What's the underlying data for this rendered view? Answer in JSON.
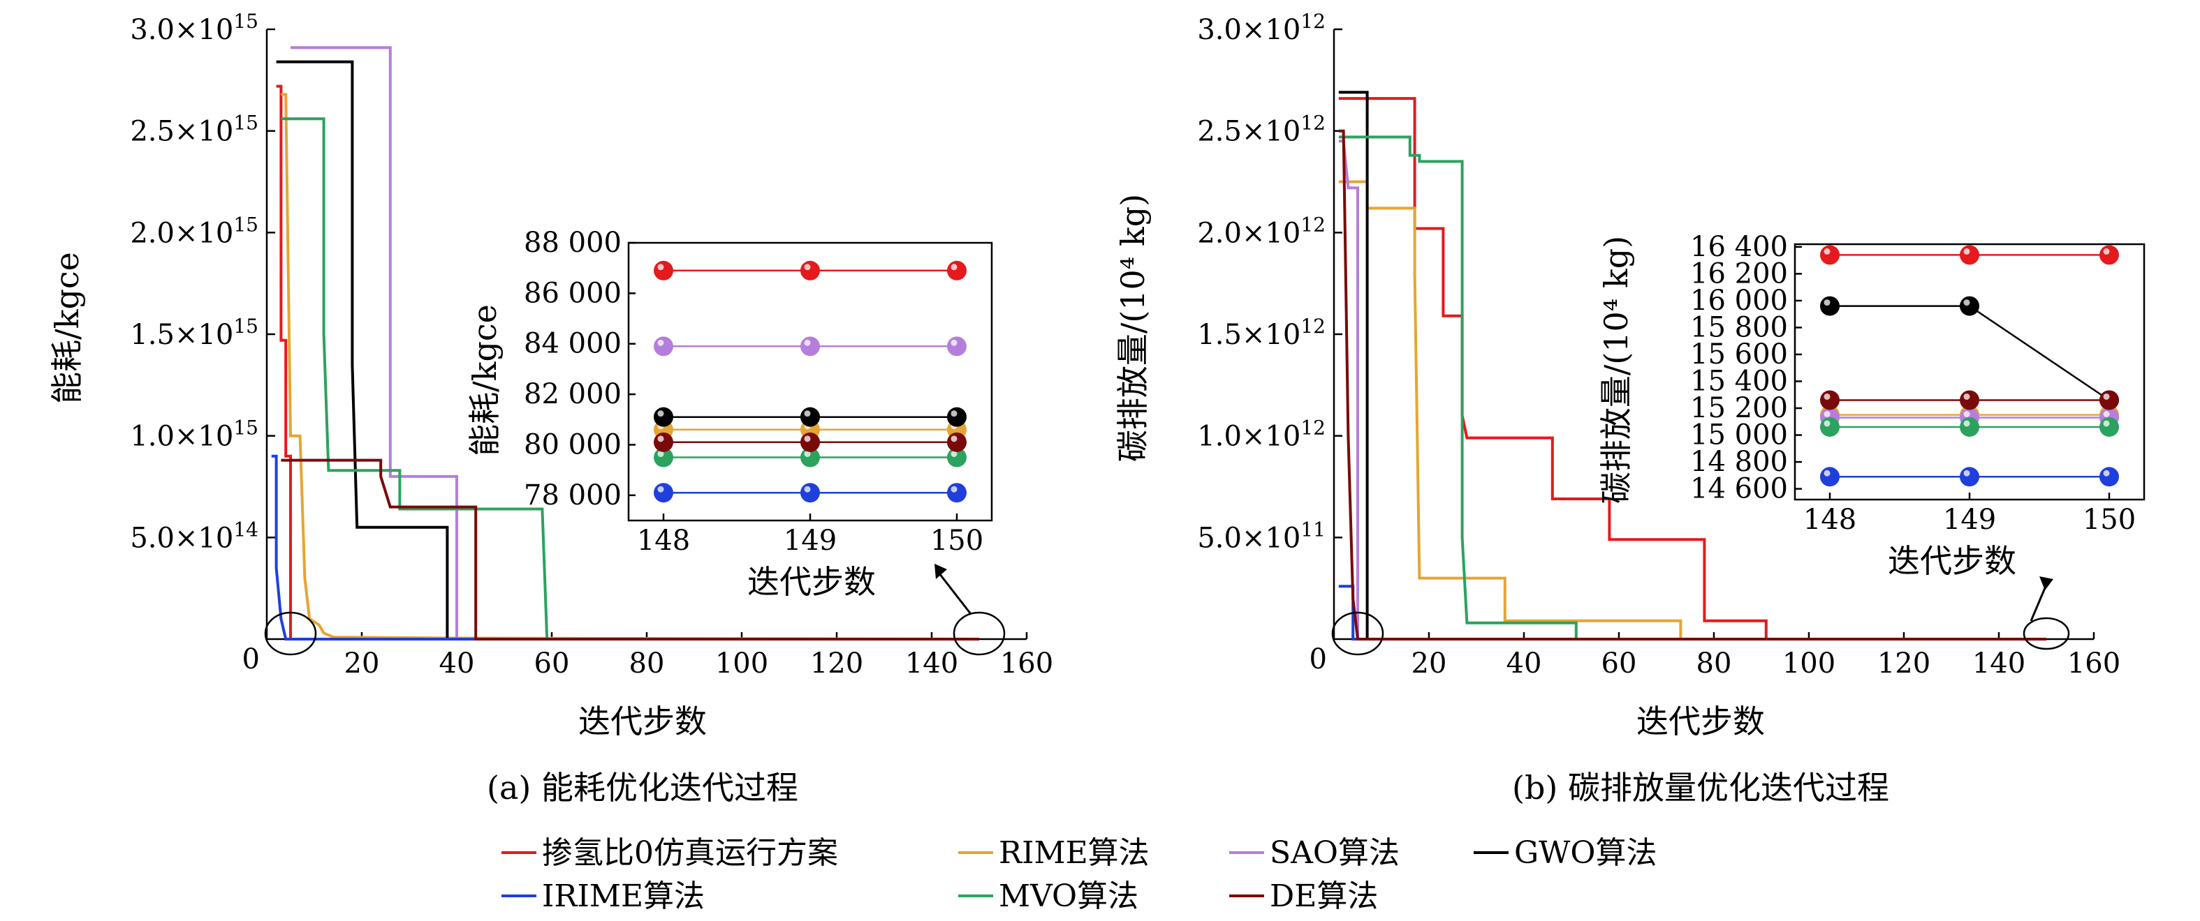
{
  "legend": [
    {
      "label": "掺氢比0仿真运行方案",
      "color": "#e41a1c"
    },
    {
      "label": "RIME算法",
      "color": "#e6a532"
    },
    {
      "label": "SAO算法",
      "color": "#b57edc"
    },
    {
      "label": "GWO算法",
      "color": "#000000"
    },
    {
      "label": "IRIME算法",
      "color": "#1f3fdc"
    },
    {
      "label": "MVO算法",
      "color": "#2ca25f"
    },
    {
      "label": "DE算法",
      "color": "#7a0a0a"
    }
  ],
  "chart_data": [
    {
      "type": "line",
      "caption": "(a) 能耗优化迭代过程",
      "xlabel": "迭代步数",
      "ylabel": "能耗/kgce",
      "xlim": [
        0,
        160
      ],
      "ylim": [
        0,
        3000000000000000.0
      ],
      "xticks": [
        "0",
        "20",
        "40",
        "60",
        "80",
        "100",
        "120",
        "140",
        "160"
      ],
      "yticks": [
        "0",
        "5.0×10¹⁴",
        "1.0×10¹⁵",
        "1.5×10¹⁵",
        "2.0×10¹⁵",
        "2.5×10¹⁵",
        "3.0×10¹⁵"
      ],
      "series": [
        {
          "name": "掺氢比0仿真运行方案",
          "color": "#e41a1c",
          "points": [
            [
              2,
              2720000000000000.0
            ],
            [
              3,
              2720000000000000.0
            ],
            [
              3,
              1470000000000000.0
            ],
            [
              4,
              1470000000000000.0
            ],
            [
              4,
              900000000000000.0
            ],
            [
              5,
              900000000000000.0
            ],
            [
              5,
              0
            ],
            [
              150,
              0
            ]
          ]
        },
        {
          "name": "RIME算法",
          "color": "#e6a532",
          "points": [
            [
              3,
              2680000000000000.0
            ],
            [
              4,
              2680000000000000.0
            ],
            [
              5,
              1000000000000000.0
            ],
            [
              7,
              1000000000000000.0
            ],
            [
              8,
              300000000000000.0
            ],
            [
              9,
              100000000000000.0
            ],
            [
              11,
              70000000000000.0
            ],
            [
              12,
              30000000000000.0
            ],
            [
              14,
              10000000000000.0
            ],
            [
              40,
              5000000000000.0
            ],
            [
              150,
              0
            ]
          ]
        },
        {
          "name": "SAO算法",
          "color": "#b57edc",
          "points": [
            [
              5,
              2910000000000000.0
            ],
            [
              26,
              2910000000000000.0
            ],
            [
              26,
              800000000000000.0
            ],
            [
              40,
              800000000000000.0
            ],
            [
              40,
              0
            ],
            [
              150,
              0
            ]
          ]
        },
        {
          "name": "GWO算法",
          "color": "#000000",
          "points": [
            [
              2,
              2840000000000000.0
            ],
            [
              18,
              2840000000000000.0
            ],
            [
              18,
              1350000000000000.0
            ],
            [
              19,
              550000000000000.0
            ],
            [
              38,
              550000000000000.0
            ],
            [
              38,
              0
            ],
            [
              150,
              0
            ]
          ]
        },
        {
          "name": "IRIME算法",
          "color": "#1f3fdc",
          "points": [
            [
              1,
              900000000000000.0
            ],
            [
              2,
              900000000000000.0
            ],
            [
              2,
              350000000000000.0
            ],
            [
              3,
              100000000000000.0
            ],
            [
              4,
              0
            ],
            [
              150,
              0
            ]
          ]
        },
        {
          "name": "MVO算法",
          "color": "#2ca25f",
          "points": [
            [
              3,
              2560000000000000.0
            ],
            [
              12,
              2560000000000000.0
            ],
            [
              12,
              1500000000000000.0
            ],
            [
              13,
              830000000000000.0
            ],
            [
              28,
              830000000000000.0
            ],
            [
              28,
              640000000000000.0
            ],
            [
              58,
              640000000000000.0
            ],
            [
              59,
              0
            ],
            [
              150,
              0
            ]
          ]
        },
        {
          "name": "DE算法",
          "color": "#7a0a0a",
          "points": [
            [
              3,
              880000000000000.0
            ],
            [
              24,
              880000000000000.0
            ],
            [
              24,
              800000000000000.0
            ],
            [
              26,
              650000000000000.0
            ],
            [
              44,
              650000000000000.0
            ],
            [
              44,
              0
            ],
            [
              150,
              0
            ]
          ]
        }
      ],
      "inset": {
        "type": "scatter",
        "xlabel": "迭代步数",
        "ylabel": "能耗/kgce",
        "xticks": [
          "148",
          "149",
          "150"
        ],
        "yticks": [
          "78 000",
          "80 000",
          "82 000",
          "84 000",
          "86 000",
          "88 000"
        ],
        "x": [
          148,
          149,
          150
        ],
        "ylim": [
          77000,
          88000
        ],
        "series": [
          {
            "name": "掺氢比0仿真运行方案",
            "values": [
              86900,
              86900,
              86900
            ]
          },
          {
            "name": "RIME算法",
            "values": [
              80600,
              80600,
              80600
            ]
          },
          {
            "name": "SAO算法",
            "values": [
              83900,
              83900,
              83900
            ]
          },
          {
            "name": "GWO算法",
            "values": [
              81100,
              81100,
              81100
            ]
          },
          {
            "name": "IRIME算法",
            "values": [
              78100,
              78100,
              78100
            ]
          },
          {
            "name": "MVO算法",
            "values": [
              79500,
              79500,
              79500
            ]
          },
          {
            "name": "DE算法",
            "values": [
              80100,
              80100,
              80100
            ]
          }
        ]
      }
    },
    {
      "type": "line",
      "caption": "(b) 碳排放量优化迭代过程",
      "xlabel": "迭代步数",
      "ylabel": "碳排放量/(10⁴ kg)",
      "xlim": [
        0,
        160
      ],
      "ylim": [
        0,
        3000000000000.0
      ],
      "xticks": [
        "0",
        "20",
        "40",
        "60",
        "80",
        "100",
        "120",
        "140",
        "160"
      ],
      "yticks": [
        "0",
        "5.0×10¹¹",
        "1.0×10¹²",
        "1.5×10¹²",
        "2.0×10¹²",
        "2.5×10¹²",
        "3.0×10¹²"
      ],
      "series": [
        {
          "name": "掺氢比0仿真运行方案",
          "color": "#e41a1c",
          "points": [
            [
              1,
              2660000000000.0
            ],
            [
              17,
              2660000000000.0
            ],
            [
              17,
              2020000000000.0
            ],
            [
              23,
              2020000000000.0
            ],
            [
              23,
              1590000000000.0
            ],
            [
              27,
              1590000000000.0
            ],
            [
              27,
              1100000000000.0
            ],
            [
              28,
              990000000000.0
            ],
            [
              46,
              990000000000.0
            ],
            [
              46,
              690000000000.0
            ],
            [
              58,
              690000000000.0
            ],
            [
              58,
              490000000000.0
            ],
            [
              78,
              490000000000.0
            ],
            [
              78,
              90000000000.0
            ],
            [
              91,
              90000000000.0
            ],
            [
              91,
              0
            ],
            [
              150,
              0
            ]
          ]
        },
        {
          "name": "RIME算法",
          "color": "#e6a532",
          "points": [
            [
              1,
              2250000000000.0
            ],
            [
              7,
              2250000000000.0
            ],
            [
              7,
              2120000000000.0
            ],
            [
              17,
              2120000000000.0
            ],
            [
              17,
              1800000000000.0
            ],
            [
              18,
              300000000000.0
            ],
            [
              27,
              300000000000.0
            ],
            [
              36,
              300000000000.0
            ],
            [
              36,
              90000000000.0
            ],
            [
              73,
              90000000000.0
            ],
            [
              73,
              0
            ],
            [
              150,
              0
            ]
          ]
        },
        {
          "name": "SAO算法",
          "color": "#b57edc",
          "points": [
            [
              1,
              2450000000000.0
            ],
            [
              2,
              2450000000000.0
            ],
            [
              3,
              2220000000000.0
            ],
            [
              5,
              2220000000000.0
            ],
            [
              5,
              0
            ],
            [
              150,
              0
            ]
          ]
        },
        {
          "name": "GWO算法",
          "color": "#000000",
          "points": [
            [
              1,
              2690000000000.0
            ],
            [
              7,
              2690000000000.0
            ],
            [
              7,
              0
            ],
            [
              150,
              0
            ]
          ]
        },
        {
          "name": "IRIME算法",
          "color": "#1f3fdc",
          "points": [
            [
              1,
              260000000000.0
            ],
            [
              4,
              260000000000.0
            ],
            [
              4,
              0
            ],
            [
              150,
              0
            ]
          ]
        },
        {
          "name": "MVO算法",
          "color": "#2ca25f",
          "points": [
            [
              1,
              2470000000000.0
            ],
            [
              16,
              2470000000000.0
            ],
            [
              16,
              2380000000000.0
            ],
            [
              18,
              2380000000000.0
            ],
            [
              18,
              2350000000000.0
            ],
            [
              27,
              2350000000000.0
            ],
            [
              27,
              500000000000.0
            ],
            [
              28,
              80000000000.0
            ],
            [
              51,
              80000000000.0
            ],
            [
              51,
              0
            ],
            [
              150,
              0
            ]
          ]
        },
        {
          "name": "DE算法",
          "color": "#7a0a0a",
          "points": [
            [
              1,
              2500000000000.0
            ],
            [
              2,
              2500000000000.0
            ],
            [
              3,
              1000000000000.0
            ],
            [
              4,
              200000000000.0
            ],
            [
              5,
              0
            ],
            [
              150,
              0
            ]
          ]
        }
      ],
      "inset": {
        "type": "scatter",
        "xlabel": "迭代步数",
        "ylabel": "碳排放量/(10⁴ kg)",
        "xticks": [
          "148",
          "149",
          "150"
        ],
        "yticks": [
          "14 600",
          "14 800",
          "15 000",
          "15 200",
          "15 400",
          "15 600",
          "15 800",
          "16 000",
          "16 200",
          "16 400"
        ],
        "x": [
          148,
          149,
          150
        ],
        "ylim": [
          14520,
          16420
        ],
        "series": [
          {
            "name": "掺氢比0仿真运行方案",
            "values": [
              16340,
              16340,
              16340
            ]
          },
          {
            "name": "RIME算法",
            "values": [
              15150,
              15150,
              15150
            ]
          },
          {
            "name": "SAO算法",
            "values": [
              15130,
              15130,
              15130
            ]
          },
          {
            "name": "GWO算法",
            "values": [
              15960,
              15960,
              15260
            ]
          },
          {
            "name": "IRIME算法",
            "values": [
              14690,
              14690,
              14690
            ]
          },
          {
            "name": "MVO算法",
            "values": [
              15060,
              15060,
              15060
            ]
          },
          {
            "name": "DE算法",
            "values": [
              15260,
              15260,
              15260
            ]
          }
        ]
      }
    }
  ]
}
